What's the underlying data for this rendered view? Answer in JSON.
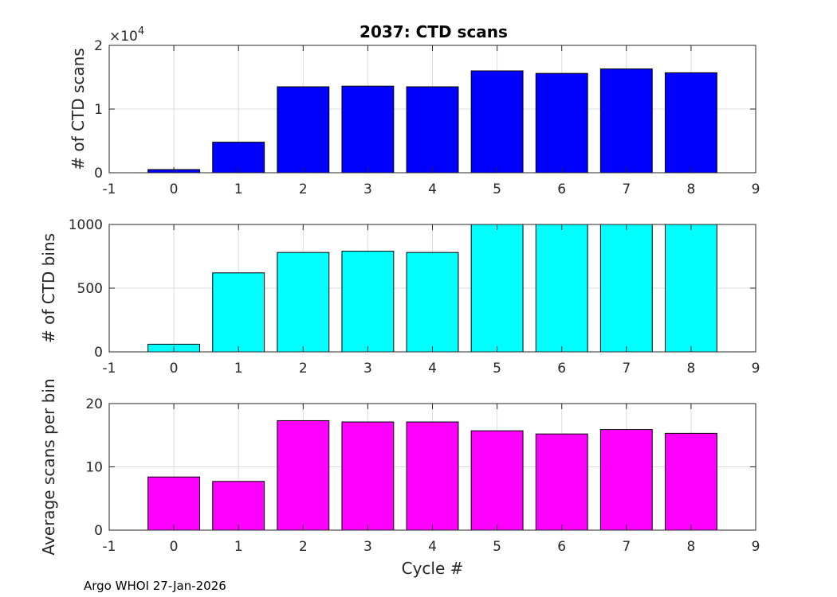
{
  "title": "2037: CTD scans",
  "footer": "Argo WHOI 27-Jan-2026",
  "chart_data": [
    {
      "type": "bar",
      "name": "ctd-scans",
      "title": "2037: CTD scans",
      "ylabel": "# of CTD scans",
      "xlabel": "",
      "exponent_label": "×10",
      "exponent_sup": "4",
      "color": "#0000ff",
      "xlim": [
        -1,
        9
      ],
      "ylim": [
        0,
        20000
      ],
      "xticks": [
        -1,
        0,
        1,
        2,
        3,
        4,
        5,
        6,
        7,
        8,
        9
      ],
      "xtick_labels": [
        "-1",
        "0",
        "1",
        "2",
        "3",
        "4",
        "5",
        "6",
        "7",
        "8",
        "9"
      ],
      "yticks": [
        0,
        10000,
        20000
      ],
      "ytick_labels": [
        "0",
        "1",
        "2"
      ],
      "categories": [
        0,
        1,
        2,
        3,
        4,
        5,
        6,
        7,
        8
      ],
      "values": [
        500,
        4800,
        13500,
        13600,
        13500,
        16000,
        15600,
        16300,
        15700
      ],
      "grid": true
    },
    {
      "type": "bar",
      "name": "ctd-bins",
      "title": "",
      "ylabel": "# of CTD bins",
      "xlabel": "",
      "color": "#00ffff",
      "xlim": [
        -1,
        9
      ],
      "ylim": [
        0,
        1000
      ],
      "xticks": [
        -1,
        0,
        1,
        2,
        3,
        4,
        5,
        6,
        7,
        8,
        9
      ],
      "xtick_labels": [
        "-1",
        "0",
        "1",
        "2",
        "3",
        "4",
        "5",
        "6",
        "7",
        "8",
        "9"
      ],
      "yticks": [
        0,
        500,
        1000
      ],
      "ytick_labels": [
        "0",
        "500",
        "1000"
      ],
      "categories": [
        0,
        1,
        2,
        3,
        4,
        5,
        6,
        7,
        8
      ],
      "values": [
        60,
        620,
        780,
        790,
        780,
        1000,
        1000,
        1000,
        1000
      ],
      "grid": true
    },
    {
      "type": "bar",
      "name": "avg-scans-per-bin",
      "title": "",
      "ylabel": "Average scans per bin",
      "xlabel": "Cycle #",
      "color": "#ff00ff",
      "xlim": [
        -1,
        9
      ],
      "ylim": [
        0,
        20
      ],
      "xticks": [
        -1,
        0,
        1,
        2,
        3,
        4,
        5,
        6,
        7,
        8,
        9
      ],
      "xtick_labels": [
        "-1",
        "0",
        "1",
        "2",
        "3",
        "4",
        "5",
        "6",
        "7",
        "8",
        "9"
      ],
      "yticks": [
        0,
        10,
        20
      ],
      "ytick_labels": [
        "0",
        "10",
        "20"
      ],
      "categories": [
        0,
        1,
        2,
        3,
        4,
        5,
        6,
        7,
        8
      ],
      "values": [
        8.4,
        7.7,
        17.3,
        17.1,
        17.1,
        15.7,
        15.2,
        15.9,
        15.3
      ],
      "grid": true
    }
  ]
}
